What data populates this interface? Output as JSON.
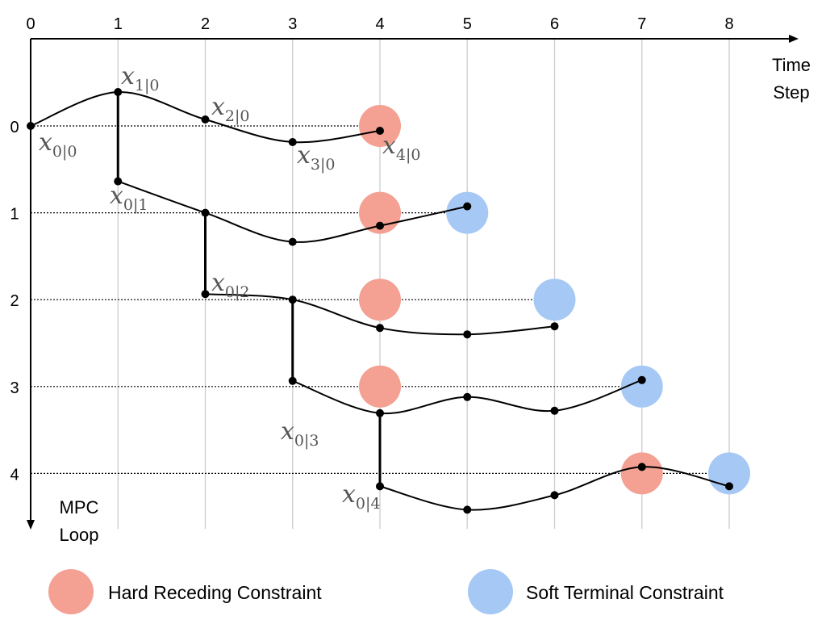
{
  "axes": {
    "time_label_line1": "Time",
    "time_label_line2": "Step",
    "loop_label_line1": "MPC",
    "loop_label_line2": "Loop",
    "time_ticks": [
      "0",
      "1",
      "2",
      "3",
      "4",
      "5",
      "6",
      "7",
      "8"
    ],
    "loop_ticks": [
      "0",
      "1",
      "2",
      "3",
      "4"
    ]
  },
  "legend": {
    "hard": "Hard Receding Constraint",
    "soft": "Soft Terminal Constraint"
  },
  "colors": {
    "hard": "#f4a093",
    "soft": "#a5c8f5",
    "grid": "#cccccc",
    "trajectory": "#000000"
  },
  "state_labels": [
    {
      "var": "x",
      "sub": "0|0"
    },
    {
      "var": "x",
      "sub": "1|0"
    },
    {
      "var": "x",
      "sub": "2|0"
    },
    {
      "var": "x",
      "sub": "3|0"
    },
    {
      "var": "x",
      "sub": "4|0"
    },
    {
      "var": "x",
      "sub": "0|1"
    },
    {
      "var": "x",
      "sub": "0|2"
    },
    {
      "var": "x",
      "sub": "0|3"
    },
    {
      "var": "x",
      "sub": "0|4"
    }
  ],
  "loops": [
    {
      "loop": 0,
      "start_step": 0,
      "end_step": 4,
      "hard_at_step": 4,
      "soft_at_step": null
    },
    {
      "loop": 1,
      "start_step": 1,
      "end_step": 5,
      "hard_at_step": 4,
      "soft_at_step": 5
    },
    {
      "loop": 2,
      "start_step": 2,
      "end_step": 6,
      "hard_at_step": 4,
      "soft_at_step": 6
    },
    {
      "loop": 3,
      "start_step": 3,
      "end_step": 7,
      "hard_at_step": 4,
      "soft_at_step": 7
    },
    {
      "loop": 4,
      "start_step": 4,
      "end_step": 8,
      "hard_at_step": 7,
      "soft_at_step": 8
    }
  ]
}
